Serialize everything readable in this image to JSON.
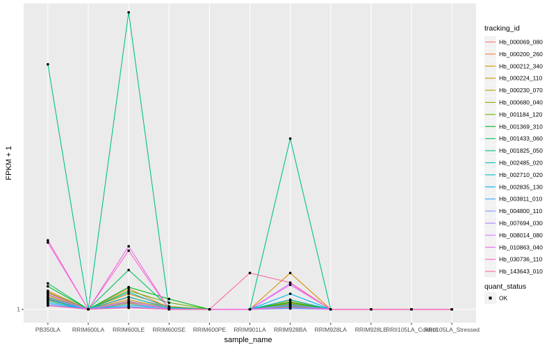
{
  "chart_data": {
    "type": "line",
    "xlabel": "sample_name",
    "ylabel": "FPKM + 1",
    "categories": [
      "PB350LA",
      "RRIM600LA",
      "RRIM600LE",
      "RRIM600SE",
      "RRIM600PE",
      "RRIM901LA",
      "RRIM928BA",
      "RRIM928LA",
      "RRIM928LE",
      "RRII105LA_Control",
      "RRII105LA_Stressed"
    ],
    "y_ticks": [
      {
        "value": 1,
        "label": "1"
      }
    ],
    "ylim": [
      -0.8,
      42.2
    ],
    "grid": true,
    "legend_position": "right",
    "legend_title": "tracking_id",
    "series": [
      {
        "name": "Hb_000069_080",
        "color": "#F8766D",
        "values": [
          3.2,
          1,
          2.6,
          1.3,
          1,
          1,
          1.6,
          1,
          1,
          1,
          1
        ]
      },
      {
        "name": "Hb_000200_260",
        "color": "#EC8239",
        "values": [
          3.5,
          1,
          3.8,
          1.2,
          1,
          1,
          1.8,
          1,
          1,
          1,
          1
        ]
      },
      {
        "name": "Hb_000212_340",
        "color": "#DB8E00",
        "values": [
          2.9,
          1,
          3.1,
          1.4,
          1,
          1,
          5.9,
          1,
          1,
          1,
          1
        ]
      },
      {
        "name": "Hb_000224_110",
        "color": "#C79800",
        "values": [
          2.7,
          1,
          2.3,
          1.1,
          1,
          1,
          2.2,
          1,
          1,
          1,
          1
        ]
      },
      {
        "name": "Hb_000230_070",
        "color": "#AEA200",
        "values": [
          2.4,
          1,
          2.0,
          1.2,
          1,
          1,
          1.4,
          1,
          1,
          1,
          1
        ]
      },
      {
        "name": "Hb_000680_040",
        "color": "#8FAA00",
        "values": [
          2.2,
          1,
          1.8,
          1.1,
          1,
          1,
          1.3,
          1,
          1,
          1,
          1
        ]
      },
      {
        "name": "Hb_001184_120",
        "color": "#64B200",
        "values": [
          3.3,
          1,
          3.5,
          1.9,
          1,
          1,
          1.9,
          1,
          1,
          1,
          1
        ]
      },
      {
        "name": "Hb_001369_310",
        "color": "#00B81B",
        "values": [
          4.1,
          1,
          4.0,
          2.4,
          1,
          1,
          2.0,
          1,
          1,
          1,
          1
        ]
      },
      {
        "name": "Hb_001433_060",
        "color": "#00BD5C",
        "values": [
          4.5,
          1,
          6.3,
          1.3,
          1,
          1,
          1.7,
          1,
          1,
          1,
          1
        ]
      },
      {
        "name": "Hb_001825_050",
        "color": "#00C08D",
        "values": [
          34.0,
          1,
          41.0,
          1,
          1,
          1,
          24.0,
          1,
          1,
          1,
          1
        ]
      },
      {
        "name": "Hb_002485_020",
        "color": "#00C1B2",
        "values": [
          2.6,
          1,
          2.7,
          1.1,
          1,
          1,
          1.5,
          1,
          1,
          1,
          1
        ]
      },
      {
        "name": "Hb_002710_020",
        "color": "#00BCD1",
        "values": [
          2.0,
          1,
          3.3,
          1.2,
          1,
          1,
          2.3,
          1,
          1,
          1,
          1
        ]
      },
      {
        "name": "Hb_002835_130",
        "color": "#00B3EB",
        "values": [
          2.3,
          1,
          1.6,
          1.1,
          1,
          1,
          3.1,
          1,
          1,
          1,
          1
        ]
      },
      {
        "name": "Hb_003811_010",
        "color": "#39A5FF",
        "values": [
          1.8,
          1,
          1.4,
          1,
          1,
          1,
          1.2,
          1,
          1,
          1,
          1
        ]
      },
      {
        "name": "Hb_004800_110",
        "color": "#8195FF",
        "values": [
          1.6,
          1,
          1.3,
          1,
          1,
          1,
          1.1,
          1,
          1,
          1,
          1
        ]
      },
      {
        "name": "Hb_007694_030",
        "color": "#B186FF",
        "values": [
          2.5,
          1,
          2.1,
          1.1,
          1,
          1,
          1.6,
          1,
          1,
          1,
          1
        ]
      },
      {
        "name": "Hb_008014_080",
        "color": "#D575FE",
        "values": [
          3.0,
          1,
          1.9,
          1,
          1,
          1,
          4.5,
          1,
          1,
          1,
          1
        ]
      },
      {
        "name": "Hb_010863_040",
        "color": "#EE67EB",
        "values": [
          10.0,
          1,
          9.5,
          1,
          1,
          1,
          4.3,
          1,
          1,
          1,
          1
        ]
      },
      {
        "name": "Hb_030736_110",
        "color": "#FE61CF",
        "values": [
          10.3,
          1,
          8.9,
          1,
          1,
          1,
          1.3,
          1,
          1,
          1,
          1
        ]
      },
      {
        "name": "Hb_143643_010",
        "color": "#FF67A9",
        "values": [
          1.5,
          1,
          1.2,
          1,
          1,
          5.9,
          4.6,
          1,
          1,
          1,
          1
        ]
      }
    ],
    "quant_status_legend": {
      "title": "quant_status",
      "items": [
        "OK"
      ]
    },
    "colors": {
      "panel_background": "#EBEBEB",
      "grid_major": "#FFFFFF",
      "grid_minor": "#F4F4F4",
      "point": "#000000"
    }
  }
}
